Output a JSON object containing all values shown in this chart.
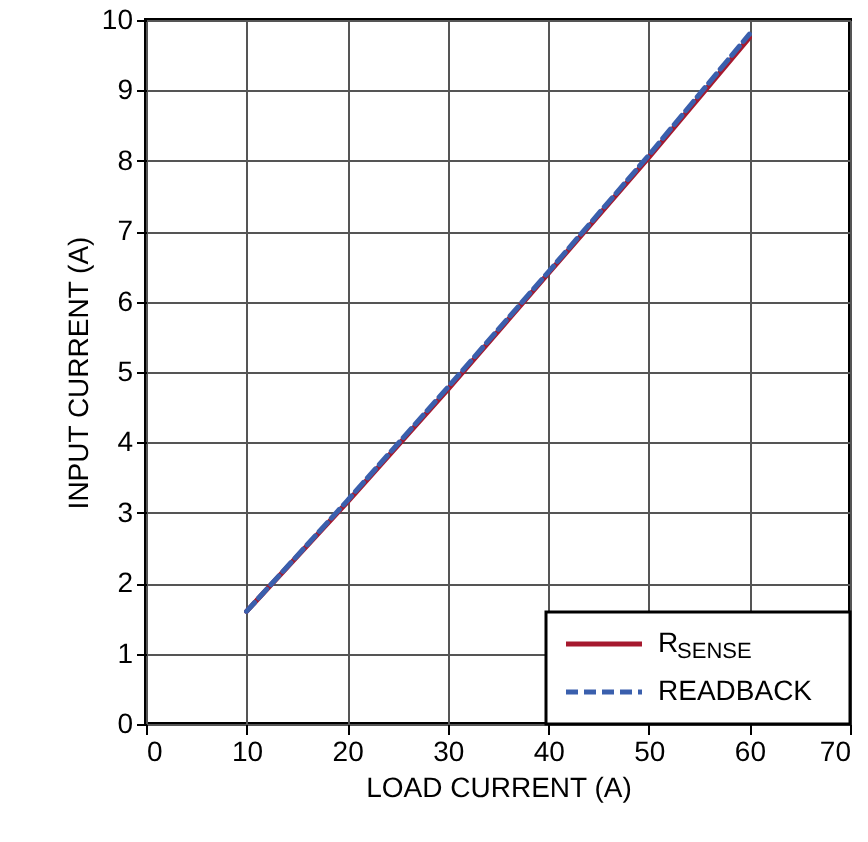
{
  "chart_data": {
    "type": "line",
    "xlabel": "LOAD CURRENT (A)",
    "ylabel": "INPUT CURRENT (A)",
    "xlim": [
      0,
      70
    ],
    "xticks": [
      0,
      10,
      20,
      30,
      40,
      50,
      60,
      70
    ],
    "ylim": [
      0,
      10
    ],
    "yticks": [
      0,
      1,
      2,
      3,
      4,
      5,
      6,
      7,
      8,
      9,
      10
    ],
    "grid": true,
    "legend": "bottom right",
    "series": [
      {
        "name": "R$_{SENSE}$",
        "color": "#a6192e",
        "line_style": "solid",
        "x": [
          10,
          20,
          30,
          40,
          50,
          60
        ],
        "values": [
          1.6,
          3.15,
          4.75,
          6.4,
          8.05,
          9.75
        ]
      },
      {
        "name": "READBACK",
        "color": "#3a5fad",
        "line_style": "dashed",
        "x": [
          10,
          20,
          30,
          40,
          50,
          60
        ],
        "values": [
          1.6,
          3.17,
          4.78,
          6.42,
          8.08,
          9.8
        ]
      }
    ]
  }
}
